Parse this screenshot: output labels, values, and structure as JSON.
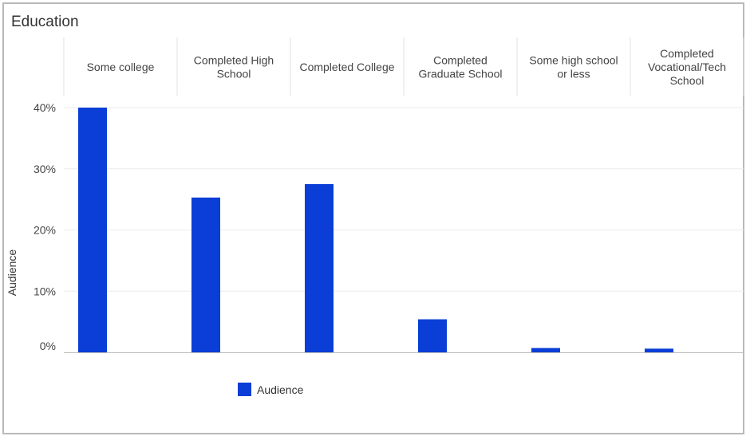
{
  "chart_data": {
    "type": "bar",
    "title": "Education",
    "ylabel": "Audience",
    "ylim": [
      0,
      40
    ],
    "yticks": [
      {
        "value": 0,
        "label": "0%"
      },
      {
        "value": 10,
        "label": "10%"
      },
      {
        "value": 20,
        "label": "20%"
      },
      {
        "value": 30,
        "label": "30%"
      },
      {
        "value": 40,
        "label": "40%"
      }
    ],
    "categories": [
      [
        "Some college"
      ],
      [
        "Completed High",
        "School"
      ],
      [
        "Completed College"
      ],
      [
        "Completed",
        "Graduate School"
      ],
      [
        "Some high school",
        "or less"
      ],
      [
        "Completed",
        "Vocational/Tech",
        "School"
      ]
    ],
    "series": [
      {
        "name": "Audience",
        "color": "#0a3ed6",
        "values": [
          40,
          25.3,
          27.5,
          5.4,
          0.7,
          0.6
        ]
      }
    ],
    "legend": "bottom",
    "grid": true
  }
}
